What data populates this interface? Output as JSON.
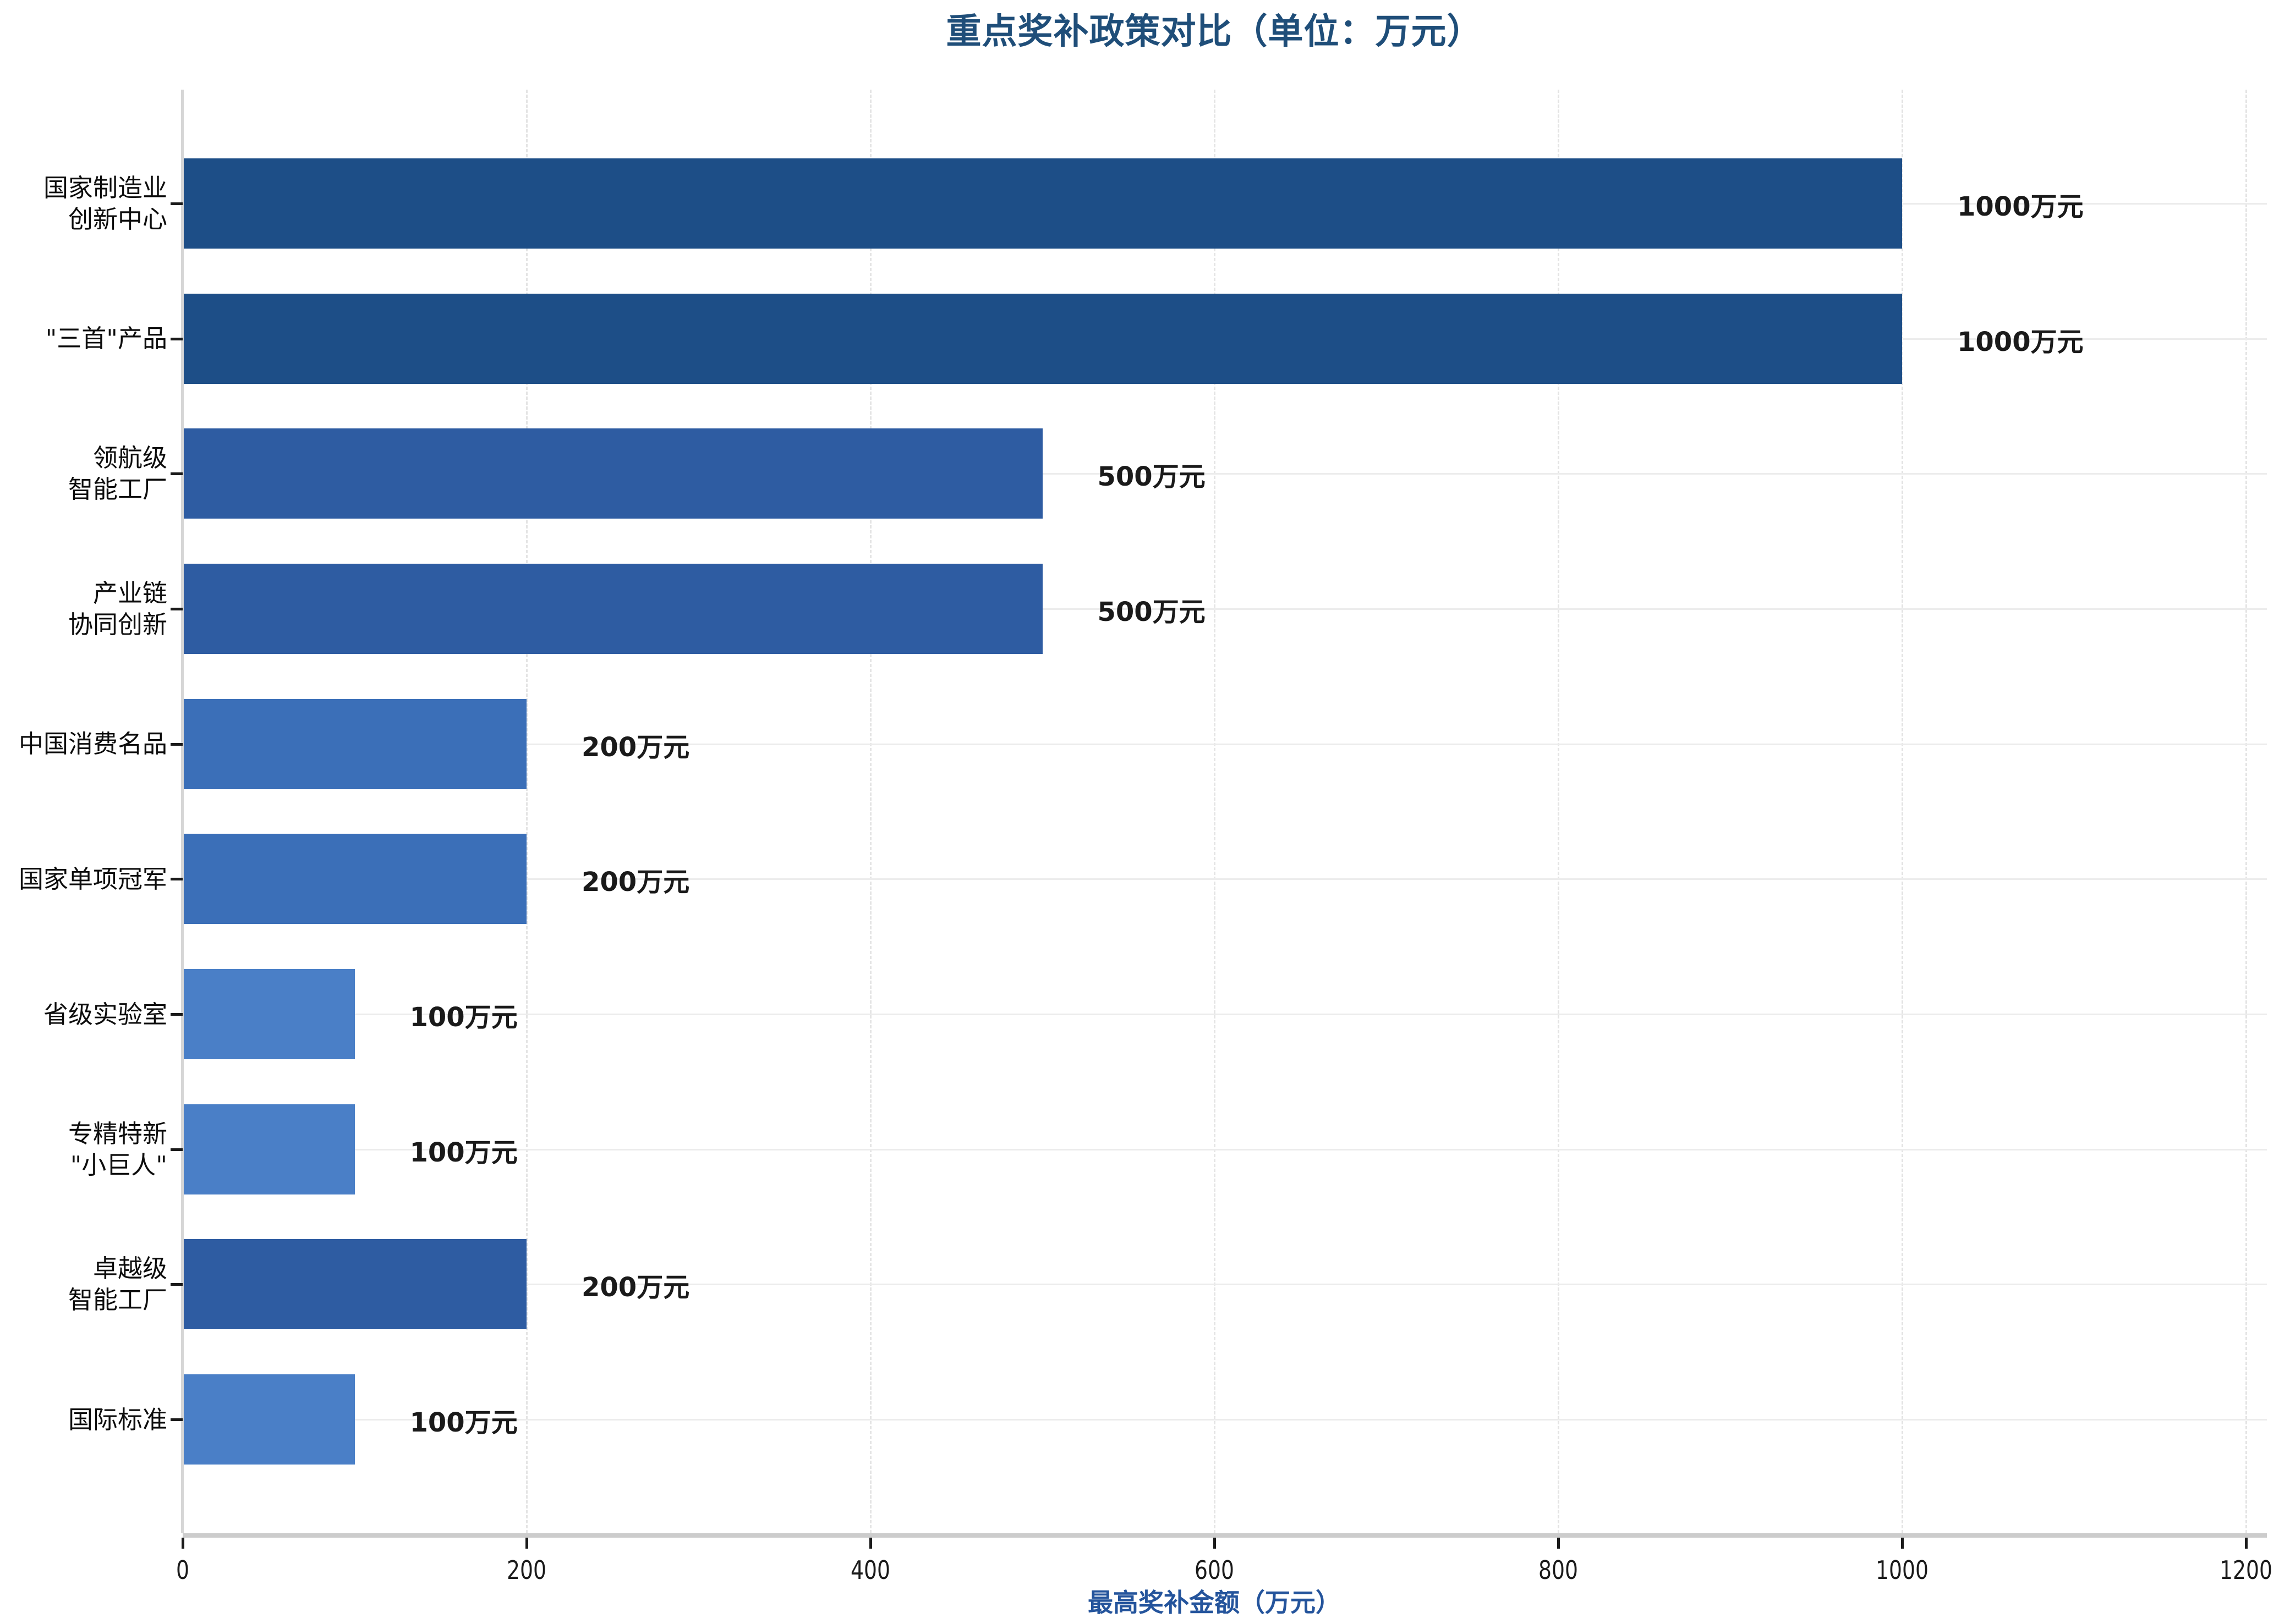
{
  "chart_data": {
    "type": "bar",
    "orientation": "horizontal",
    "title": "重点奖补政策对比（单位：万元）",
    "xlabel": "最高奖补金额（万元）",
    "ylabel": "",
    "xlim": [
      0,
      1200
    ],
    "xticks": [
      0,
      200,
      400,
      600,
      800,
      1000,
      1200
    ],
    "grid": true,
    "legend": "none",
    "categories": [
      "国家制造业\n创新中心",
      "\"三首\"产品",
      "领航级\n智能工厂",
      "产业链\n协同创新",
      "中国消费名品",
      "国家单项冠军",
      "省级实验室",
      "专精特新\n\"小巨人\"",
      "卓越级\n智能工厂",
      "国际标准"
    ],
    "values": [
      1000,
      1000,
      500,
      500,
      200,
      200,
      100,
      100,
      200,
      100
    ],
    "value_labels": [
      "1000万元",
      "1000万元",
      "500万元",
      "500万元",
      "200万元",
      "200万元",
      "100万元",
      "100万元",
      "200万元",
      "100万元"
    ],
    "bar_colors": [
      "#1d4e87",
      "#1d4e87",
      "#2e5ca2",
      "#2e5ca2",
      "#3b6fb8",
      "#3b6fb8",
      "#4a7fc7",
      "#4a7fc7",
      "#2e5ca2",
      "#4a7fc7"
    ]
  },
  "colors": {
    "title": "#1f4e79",
    "axis_title": "#24549c",
    "tick_label": "#1a1a1a",
    "gridline": "#ececec",
    "spine": "#cccccc",
    "background": "#ffffff"
  }
}
